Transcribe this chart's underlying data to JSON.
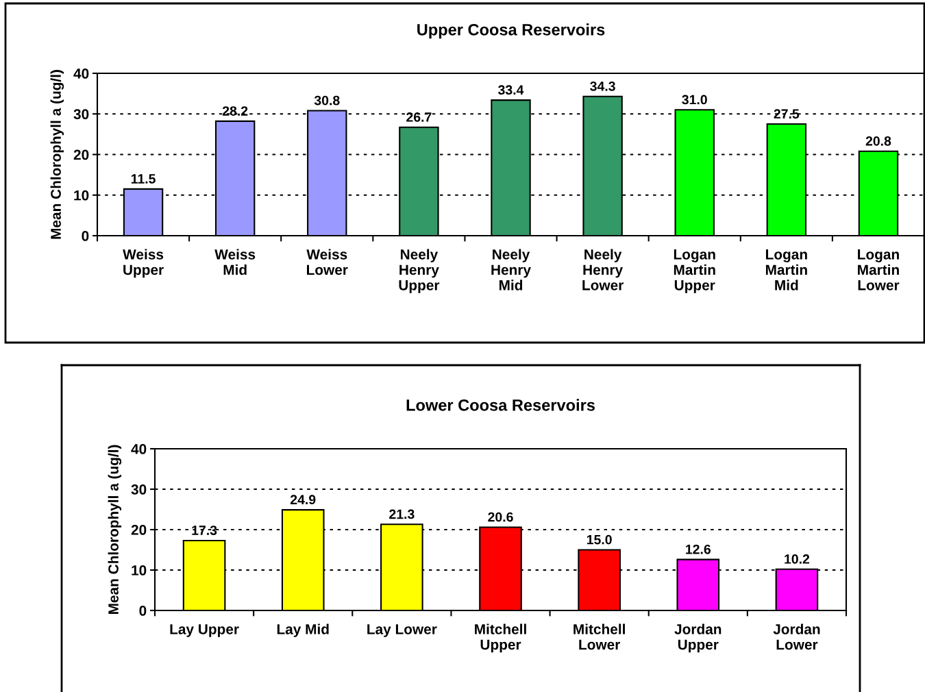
{
  "chart_data": [
    {
      "type": "bar",
      "title": "Upper Coosa Reservoirs",
      "ylabel": "Mean Chlorophyll a (ug/l)",
      "categories": [
        "Weiss\nUpper",
        "Weiss\nMid",
        "Weiss\nLower",
        "Neely\nHenry\nUpper",
        "Neely\nHenry\nMid",
        "Neely\nHenry\nLower",
        "Logan\nMartin\nUpper",
        "Logan\nMartin\nMid",
        "Logan\nMartin\nLower"
      ],
      "values": [
        11.5,
        28.2,
        30.8,
        26.7,
        33.4,
        34.3,
        31.0,
        27.5,
        20.8
      ],
      "colors": [
        "#9999ff",
        "#9999ff",
        "#9999ff",
        "#339966",
        "#339966",
        "#339966",
        "#00ff00",
        "#00ff00",
        "#00ff00"
      ],
      "value_labels": [
        "11.5",
        "28.2",
        "30.8",
        "26.7",
        "33.4",
        "34.3",
        "31.0",
        "27.5",
        "20.8"
      ],
      "ylim": [
        0,
        40
      ],
      "yticks": [
        0,
        10,
        20,
        30,
        40
      ],
      "grid": "y"
    },
    {
      "type": "bar",
      "title": "Lower Coosa Reservoirs",
      "ylabel": "Mean Chlorophyll a (ug/l)",
      "categories": [
        "Lay Upper",
        "Lay Mid",
        "Lay Lower",
        "Mitchell\nUpper",
        "Mitchell\nLower",
        "Jordan\nUpper",
        "Jordan\nLower"
      ],
      "values": [
        17.3,
        24.9,
        21.3,
        20.6,
        15.0,
        12.6,
        10.2
      ],
      "colors": [
        "#ffff00",
        "#ffff00",
        "#ffff00",
        "#ff0000",
        "#ff0000",
        "#ff00ff",
        "#ff00ff"
      ],
      "value_labels": [
        "17.3",
        "24.9",
        "21.3",
        "20.6",
        "15.0",
        "12.6",
        "10.2"
      ],
      "ylim": [
        0,
        40
      ],
      "yticks": [
        0,
        10,
        20,
        30,
        40
      ],
      "grid": "y"
    }
  ]
}
